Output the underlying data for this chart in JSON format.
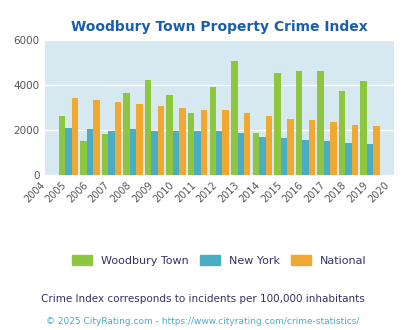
{
  "title": "Woodbury Town Property Crime Index",
  "years": [
    2004,
    2005,
    2006,
    2007,
    2008,
    2009,
    2010,
    2011,
    2012,
    2013,
    2014,
    2015,
    2016,
    2017,
    2018,
    2019,
    2020
  ],
  "woodbury": [
    null,
    2600,
    1500,
    1800,
    3650,
    4200,
    3550,
    2750,
    3900,
    5050,
    1850,
    4500,
    4600,
    4600,
    3700,
    4150,
    null
  ],
  "new_york": [
    null,
    2100,
    2050,
    1950,
    2050,
    1950,
    1950,
    1950,
    1950,
    1850,
    1700,
    1650,
    1550,
    1500,
    1400,
    1350,
    null
  ],
  "national": [
    null,
    3400,
    3300,
    3250,
    3150,
    3050,
    2950,
    2900,
    2900,
    2750,
    2600,
    2500,
    2450,
    2350,
    2200,
    2150,
    null
  ],
  "woodbury_color": "#8dc63f",
  "newyork_color": "#4bacc6",
  "national_color": "#f0a830",
  "bg_color": "#d6e8f0",
  "ylim": [
    0,
    6000
  ],
  "yticks": [
    0,
    2000,
    4000,
    6000
  ],
  "title_color": "#1a5fa8",
  "subtitle": "Crime Index corresponds to incidents per 100,000 inhabitants",
  "footer": "© 2025 CityRating.com - https://www.cityrating.com/crime-statistics/",
  "subtitle_color": "#333366",
  "footer_color": "#4bacc6",
  "legend_labels": [
    "Woodbury Town",
    "New York",
    "National"
  ],
  "legend_label_color": "#333366"
}
